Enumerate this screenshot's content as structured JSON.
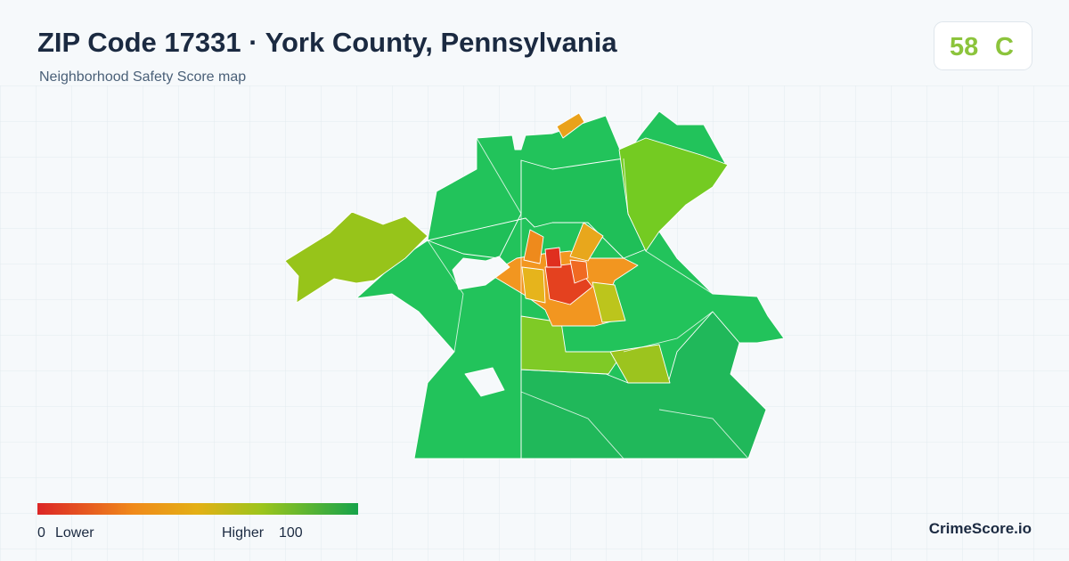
{
  "header": {
    "title": "ZIP Code 17331 · York County, Pennsylvania",
    "subtitle": "Neighborhood Safety Score map"
  },
  "score": {
    "value": 58,
    "grade": "C"
  },
  "legend": {
    "min": 0,
    "min_label": "Lower",
    "max_label": "Higher",
    "max": 100
  },
  "brand": "CrimeScore.io"
}
